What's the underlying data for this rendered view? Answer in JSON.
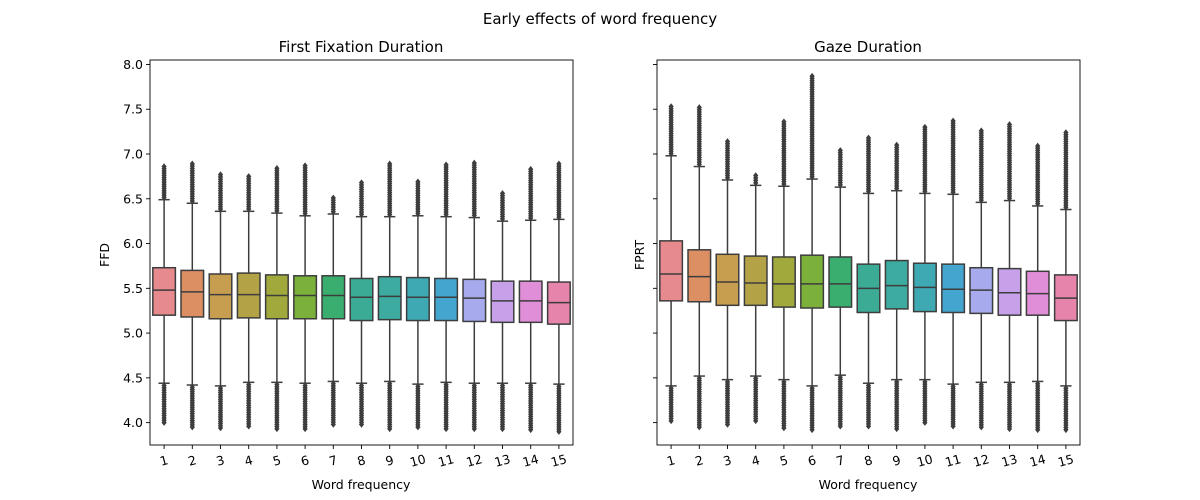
{
  "figure": {
    "suptitle": "Early effects of word frequency"
  },
  "chart_data": [
    {
      "type": "box",
      "title": "First Fixation Duration",
      "xlabel": "Word frequency",
      "ylabel": "FFD",
      "ylim": [
        3.75,
        8.05
      ],
      "yticks": [
        "4.0",
        "4.5",
        "5.0",
        "5.5",
        "6.0",
        "6.5",
        "7.0",
        "7.5",
        "8.0"
      ],
      "categories": [
        "1",
        "2",
        "3",
        "4",
        "5",
        "6",
        "7",
        "8",
        "9",
        "10",
        "11",
        "12",
        "13",
        "14",
        "15"
      ],
      "boxes": [
        {
          "q1": 5.2,
          "median": 5.48,
          "q3": 5.73,
          "whisker_low": 4.44,
          "whisker_high": 6.49,
          "outlier_max": 6.86,
          "outlier_min": 4.0
        },
        {
          "q1": 5.18,
          "median": 5.46,
          "q3": 5.7,
          "whisker_low": 4.42,
          "whisker_high": 6.45,
          "outlier_max": 6.89,
          "outlier_min": 3.95
        },
        {
          "q1": 5.16,
          "median": 5.43,
          "q3": 5.66,
          "whisker_low": 4.41,
          "whisker_high": 6.36,
          "outlier_max": 6.77,
          "outlier_min": 3.94
        },
        {
          "q1": 5.17,
          "median": 5.43,
          "q3": 5.67,
          "whisker_low": 4.45,
          "whisker_high": 6.36,
          "outlier_max": 6.75,
          "outlier_min": 3.96
        },
        {
          "q1": 5.16,
          "median": 5.42,
          "q3": 5.65,
          "whisker_low": 4.45,
          "whisker_high": 6.34,
          "outlier_max": 6.84,
          "outlier_min": 3.93
        },
        {
          "q1": 5.16,
          "median": 5.42,
          "q3": 5.64,
          "whisker_low": 4.44,
          "whisker_high": 6.31,
          "outlier_max": 6.87,
          "outlier_min": 3.93
        },
        {
          "q1": 5.16,
          "median": 5.42,
          "q3": 5.64,
          "whisker_low": 4.46,
          "whisker_high": 6.33,
          "outlier_max": 6.51,
          "outlier_min": 3.98
        },
        {
          "q1": 5.14,
          "median": 5.4,
          "q3": 5.61,
          "whisker_low": 4.44,
          "whisker_high": 6.3,
          "outlier_max": 6.68,
          "outlier_min": 3.98
        },
        {
          "q1": 5.15,
          "median": 5.41,
          "q3": 5.63,
          "whisker_low": 4.46,
          "whisker_high": 6.3,
          "outlier_max": 6.89,
          "outlier_min": 3.93
        },
        {
          "q1": 5.14,
          "median": 5.4,
          "q3": 5.62,
          "whisker_low": 4.43,
          "whisker_high": 6.31,
          "outlier_max": 6.69,
          "outlier_min": 3.95
        },
        {
          "q1": 5.14,
          "median": 5.4,
          "q3": 5.61,
          "whisker_low": 4.45,
          "whisker_high": 6.3,
          "outlier_max": 6.88,
          "outlier_min": 3.93
        },
        {
          "q1": 5.13,
          "median": 5.39,
          "q3": 5.6,
          "whisker_low": 4.44,
          "whisker_high": 6.29,
          "outlier_max": 6.9,
          "outlier_min": 3.93
        },
        {
          "q1": 5.12,
          "median": 5.36,
          "q3": 5.58,
          "whisker_low": 4.44,
          "whisker_high": 6.25,
          "outlier_max": 6.56,
          "outlier_min": 3.93
        },
        {
          "q1": 5.12,
          "median": 5.36,
          "q3": 5.58,
          "whisker_low": 4.44,
          "whisker_high": 6.26,
          "outlier_max": 6.83,
          "outlier_min": 3.92
        },
        {
          "q1": 5.1,
          "median": 5.34,
          "q3": 5.57,
          "whisker_low": 4.43,
          "whisker_high": 6.27,
          "outlier_max": 6.89,
          "outlier_min": 3.9
        }
      ]
    },
    {
      "type": "box",
      "title": "Gaze Duration",
      "xlabel": "Word frequency",
      "ylabel": "FPRT",
      "ylim": [
        3.75,
        8.05
      ],
      "categories": [
        "1",
        "2",
        "3",
        "4",
        "5",
        "6",
        "7",
        "8",
        "9",
        "10",
        "11",
        "12",
        "13",
        "14",
        "15"
      ],
      "boxes": [
        {
          "q1": 5.36,
          "median": 5.66,
          "q3": 6.03,
          "whisker_low": 4.41,
          "whisker_high": 6.98,
          "outlier_max": 7.53,
          "outlier_min": 4.02
        },
        {
          "q1": 5.35,
          "median": 5.63,
          "q3": 5.93,
          "whisker_low": 4.52,
          "whisker_high": 6.86,
          "outlier_max": 7.52,
          "outlier_min": 3.95
        },
        {
          "q1": 5.31,
          "median": 5.57,
          "q3": 5.88,
          "whisker_low": 4.48,
          "whisker_high": 6.71,
          "outlier_max": 7.14,
          "outlier_min": 3.98
        },
        {
          "q1": 5.31,
          "median": 5.56,
          "q3": 5.86,
          "whisker_low": 4.52,
          "whisker_high": 6.65,
          "outlier_max": 6.76,
          "outlier_min": 4.02
        },
        {
          "q1": 5.29,
          "median": 5.55,
          "q3": 5.85,
          "whisker_low": 4.48,
          "whisker_high": 6.64,
          "outlier_max": 7.36,
          "outlier_min": 3.94
        },
        {
          "q1": 5.28,
          "median": 5.55,
          "q3": 5.87,
          "whisker_low": 4.41,
          "whisker_high": 6.72,
          "outlier_max": 7.87,
          "outlier_min": 3.92
        },
        {
          "q1": 5.29,
          "median": 5.55,
          "q3": 5.85,
          "whisker_low": 4.53,
          "whisker_high": 6.63,
          "outlier_max": 7.04,
          "outlier_min": 3.96
        },
        {
          "q1": 5.23,
          "median": 5.5,
          "q3": 5.77,
          "whisker_low": 4.44,
          "whisker_high": 6.56,
          "outlier_max": 7.18,
          "outlier_min": 3.96
        },
        {
          "q1": 5.27,
          "median": 5.53,
          "q3": 5.81,
          "whisker_low": 4.48,
          "whisker_high": 6.59,
          "outlier_max": 7.1,
          "outlier_min": 3.93
        },
        {
          "q1": 5.24,
          "median": 5.51,
          "q3": 5.78,
          "whisker_low": 4.48,
          "whisker_high": 6.56,
          "outlier_max": 7.3,
          "outlier_min": 4.0
        },
        {
          "q1": 5.23,
          "median": 5.49,
          "q3": 5.77,
          "whisker_low": 4.43,
          "whisker_high": 6.55,
          "outlier_max": 7.37,
          "outlier_min": 3.96
        },
        {
          "q1": 5.22,
          "median": 5.48,
          "q3": 5.73,
          "whisker_low": 4.45,
          "whisker_high": 6.46,
          "outlier_max": 7.26,
          "outlier_min": 3.95
        },
        {
          "q1": 5.2,
          "median": 5.45,
          "q3": 5.72,
          "whisker_low": 4.45,
          "whisker_high": 6.48,
          "outlier_max": 7.33,
          "outlier_min": 3.93
        },
        {
          "q1": 5.2,
          "median": 5.44,
          "q3": 5.69,
          "whisker_low": 4.46,
          "whisker_high": 6.42,
          "outlier_max": 7.09,
          "outlier_min": 3.92
        },
        {
          "q1": 5.14,
          "median": 5.39,
          "q3": 5.65,
          "whisker_low": 4.41,
          "whisker_high": 6.38,
          "outlier_max": 7.24,
          "outlier_min": 3.92
        }
      ]
    }
  ],
  "palette": [
    "#e68a8e",
    "#dc8f63",
    "#c79e4f",
    "#b3a346",
    "#a1a83c",
    "#7bb03a",
    "#3aae6f",
    "#3bab95",
    "#3dab9f",
    "#3fa9b3",
    "#44a5cf",
    "#a7aaec",
    "#c7a0ea",
    "#e18ed8",
    "#e684ab"
  ]
}
